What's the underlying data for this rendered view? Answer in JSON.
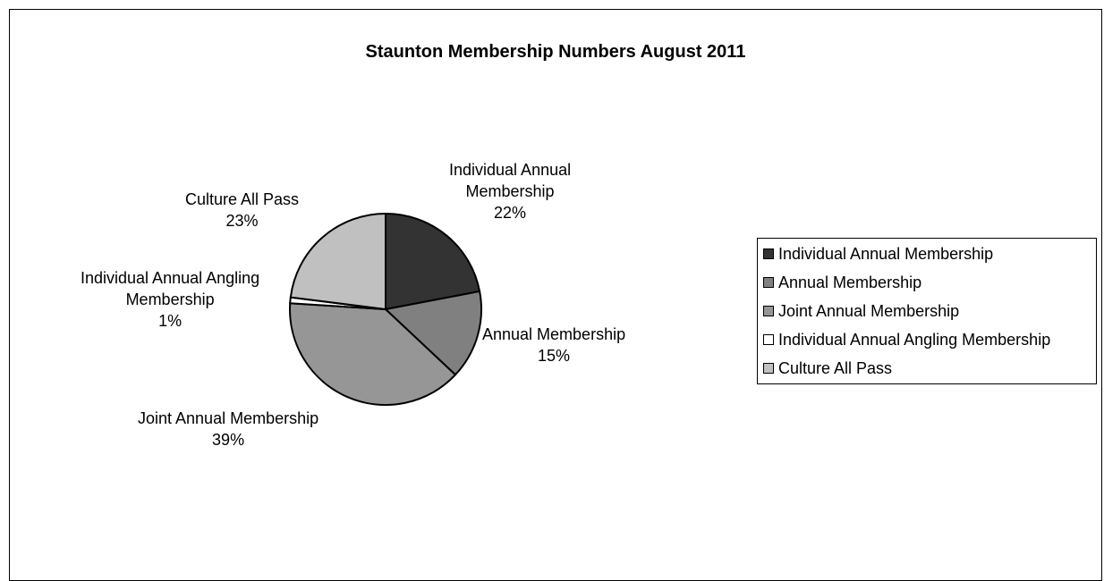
{
  "chart_data": {
    "type": "pie",
    "title": "Staunton Membership Numbers August 2011",
    "slices": [
      {
        "label": "Individual Annual Membership",
        "value": 22,
        "pct_label": "22%",
        "color": "#333333"
      },
      {
        "label": "Annual Membership",
        "value": 15,
        "pct_label": "15%",
        "color": "#808080"
      },
      {
        "label": "Joint Annual Membership",
        "value": 39,
        "pct_label": "39%",
        "color": "#969696"
      },
      {
        "label": "Individual Annual Angling Membership",
        "value": 1,
        "pct_label": "1%",
        "color": "#ffffff"
      },
      {
        "label": "Culture All Pass",
        "value": 23,
        "pct_label": "23%",
        "color": "#c0c0c0"
      }
    ],
    "legend": {
      "position": "right",
      "entries": [
        "Individual Annual Membership",
        "Annual Membership",
        "Joint Annual Membership",
        "Individual Annual Angling Membership",
        "Culture All Pass"
      ]
    }
  },
  "labels": {
    "slice0": {
      "line1": "Individual Annual",
      "line2": "Membership",
      "pct": "22%"
    },
    "slice1": {
      "line1": "Annual Membership",
      "pct": "15%"
    },
    "slice2": {
      "line1": "Joint Annual Membership",
      "pct": "39%"
    },
    "slice3": {
      "line1": "Individual Annual Angling",
      "line2": "Membership",
      "pct": "1%"
    },
    "slice4": {
      "line1": "Culture All Pass",
      "pct": "23%"
    }
  }
}
